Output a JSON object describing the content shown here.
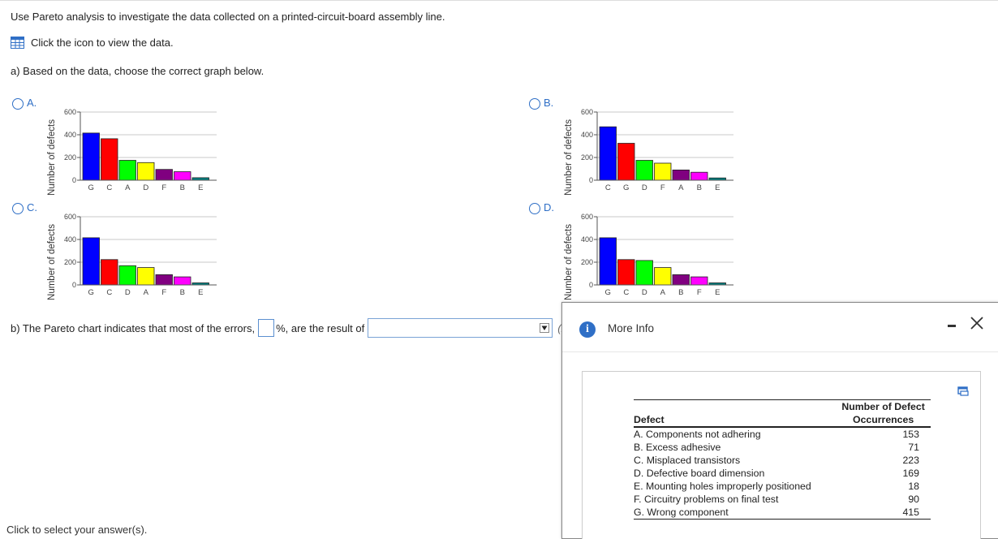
{
  "question": {
    "instruction": "Use Pareto analysis to investigate the data collected on a printed-circuit-board assembly line.",
    "data_link": "Click the icon to view the data.",
    "part_a": "a) Based on the data, choose the correct graph below.",
    "part_b_before": "b) The Pareto chart indicates that most of the errors,",
    "part_b_mid": "%, are the result of",
    "part_b_trail": "(ro",
    "hint": "Click to select your answer(s)."
  },
  "options": [
    {
      "letter": "A.",
      "ylabel": "Number of defects"
    },
    {
      "letter": "B.",
      "ylabel": "Number of defects"
    },
    {
      "letter": "C.",
      "ylabel": "Number of defects"
    },
    {
      "letter": "D.",
      "ylabel": "Number of defects"
    }
  ],
  "chart_data": [
    {
      "type": "bar",
      "option": "A",
      "ylabel": "Number of defects",
      "ylim": [
        0,
        600
      ],
      "yticks": [
        0,
        200,
        400,
        600
      ],
      "categories": [
        "G",
        "C",
        "A",
        "D",
        "F",
        "B",
        "E"
      ],
      "values": [
        415,
        365,
        175,
        155,
        95,
        75,
        22
      ],
      "colors": [
        "#0000ff",
        "#ff0000",
        "#00ff00",
        "#ffff00",
        "#800080",
        "#ff00ff",
        "#008080"
      ]
    },
    {
      "type": "bar",
      "option": "B",
      "ylabel": "Number of defects",
      "ylim": [
        0,
        600
      ],
      "yticks": [
        0,
        200,
        400,
        600
      ],
      "categories": [
        "C",
        "G",
        "D",
        "F",
        "A",
        "B",
        "E"
      ],
      "values": [
        470,
        325,
        175,
        150,
        90,
        70,
        20
      ],
      "colors": [
        "#0000ff",
        "#ff0000",
        "#00ff00",
        "#ffff00",
        "#800080",
        "#ff00ff",
        "#008080"
      ]
    },
    {
      "type": "bar",
      "option": "C",
      "ylabel": "Number of defects",
      "ylim": [
        0,
        600
      ],
      "yticks": [
        0,
        200,
        400,
        600
      ],
      "categories": [
        "G",
        "C",
        "D",
        "A",
        "F",
        "B",
        "E"
      ],
      "values": [
        415,
        223,
        169,
        153,
        90,
        71,
        18
      ],
      "colors": [
        "#0000ff",
        "#ff0000",
        "#00ff00",
        "#ffff00",
        "#800080",
        "#ff00ff",
        "#008080"
      ]
    },
    {
      "type": "bar",
      "option": "D",
      "ylabel": "Number of defects",
      "ylim": [
        0,
        600
      ],
      "yticks": [
        0,
        200,
        400,
        600
      ],
      "categories": [
        "G",
        "C",
        "D",
        "A",
        "B",
        "F",
        "E"
      ],
      "values": [
        415,
        223,
        215,
        153,
        90,
        71,
        18
      ],
      "colors": [
        "#0000ff",
        "#ff0000",
        "#00ff00",
        "#ffff00",
        "#800080",
        "#ff00ff",
        "#008080"
      ]
    }
  ],
  "popup": {
    "title": "More Info",
    "table": {
      "col1": "Defect",
      "col2_line1": "Number of Defect",
      "col2_line2": "Occurrences",
      "rows": [
        {
          "defect": "A. Components not adhering",
          "count": "153"
        },
        {
          "defect": "B. Excess adhesive",
          "count": "71"
        },
        {
          "defect": "C. Misplaced transistors",
          "count": "223"
        },
        {
          "defect": "D. Defective board dimension",
          "count": "169"
        },
        {
          "defect": "E. Mounting holes improperly positioned",
          "count": "18"
        },
        {
          "defect": "F. Circuitry problems on final test",
          "count": "90"
        },
        {
          "defect": "G. Wrong component",
          "count": "415"
        }
      ]
    }
  }
}
